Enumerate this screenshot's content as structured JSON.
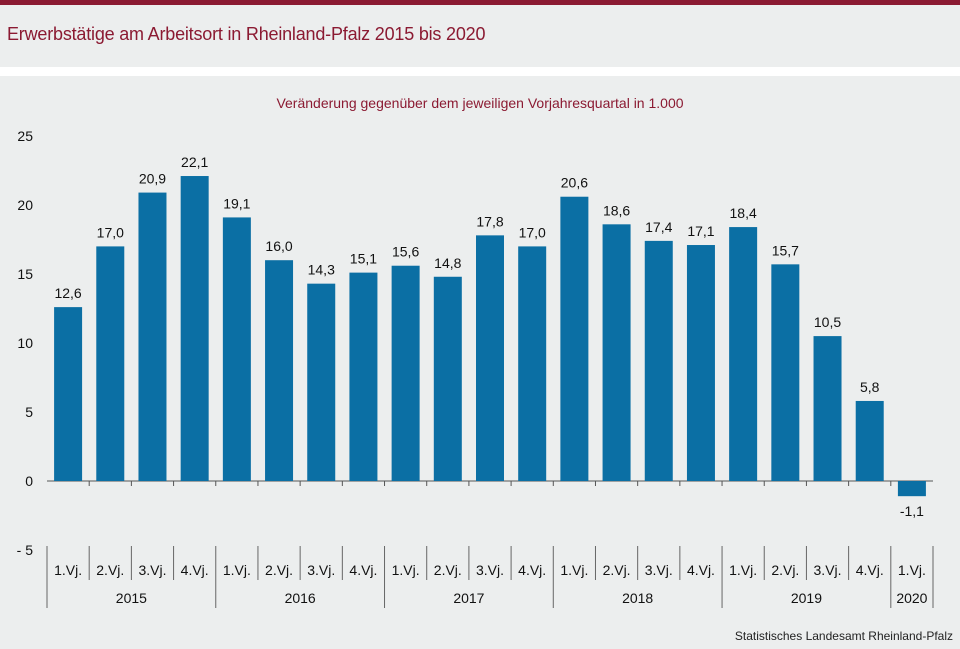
{
  "header": {
    "title": "Erwerbstätige am Arbeitsort in Rheinland-Pfalz 2015 bis 2020"
  },
  "footer": {
    "source": "Statistisches Landesamt Rheinland-Pfalz"
  },
  "colors": {
    "accent": "#8b1a32",
    "bar": "#0b6fa4",
    "background": "#eceeee"
  },
  "chart_data": {
    "type": "bar",
    "title": "",
    "subtitle": "Veränderung gegenüber dem jeweiligen Vorjahresquartal in 1.000",
    "xlabel": "",
    "ylabel": "",
    "ylim": [
      -5,
      25
    ],
    "yticks": [
      25,
      20,
      15,
      10,
      5,
      0,
      -5
    ],
    "ytick_labels": [
      "25",
      "20",
      "15",
      "10",
      "5",
      "0",
      "- 5"
    ],
    "grid": false,
    "legend": "none",
    "categories": [
      "1.Vj.",
      "2.Vj.",
      "3.Vj.",
      "4.Vj.",
      "1.Vj.",
      "2.Vj.",
      "3.Vj.",
      "4.Vj.",
      "1.Vj.",
      "2.Vj.",
      "3.Vj.",
      "4.Vj.",
      "1.Vj.",
      "2.Vj.",
      "3.Vj.",
      "4.Vj.",
      "1.Vj.",
      "2.Vj.",
      "3.Vj.",
      "4.Vj.",
      "1.Vj."
    ],
    "groups": [
      {
        "label": "2015",
        "count": 4
      },
      {
        "label": "2016",
        "count": 4
      },
      {
        "label": "2017",
        "count": 4
      },
      {
        "label": "2018",
        "count": 4
      },
      {
        "label": "2019",
        "count": 4
      },
      {
        "label": "2020",
        "count": 1
      }
    ],
    "values": [
      12.6,
      17.0,
      20.9,
      22.1,
      19.1,
      16.0,
      14.3,
      15.1,
      15.6,
      14.8,
      17.8,
      17.0,
      20.6,
      18.6,
      17.4,
      17.1,
      18.4,
      15.7,
      10.5,
      5.8,
      -1.1
    ],
    "value_labels": [
      "12,6",
      "17,0",
      "20,9",
      "22,1",
      "19,1",
      "16,0",
      "14,3",
      "15,1",
      "15,6",
      "14,8",
      "17,8",
      "17,0",
      "20,6",
      "18,6",
      "17,4",
      "17,1",
      "18,4",
      "15,7",
      "10,5",
      "5,8",
      "-1,1"
    ]
  }
}
